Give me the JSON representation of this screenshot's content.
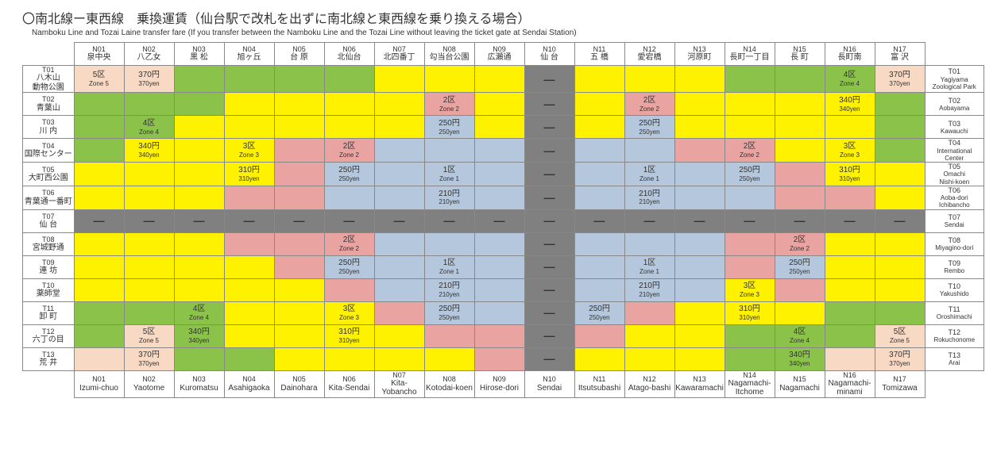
{
  "title_jp": "〇南北線ー東西線　乗換運賃（仙台駅で改札を出ずに南北線と東西線を乗り換える場合）",
  "subtitle_en": "Namboku Line and Tozai Laine transfer fare (If you transfer between the Namboku Line and the Tozai Line without leaving the ticket gate at Sendai Station)",
  "colors": {
    "yellow": "#fff200",
    "green": "#8bc34a",
    "pink": "#e9a3a0",
    "blue": "#b4c7dc",
    "peach": "#f7d9c4",
    "gray": "#808080",
    "white": "#ffffff"
  },
  "columns": [
    {
      "code": "N01",
      "jp": "泉中央",
      "en": "Izumi-chuo"
    },
    {
      "code": "N02",
      "jp": "八乙女",
      "en": "Yaotome"
    },
    {
      "code": "N03",
      "jp": "黒 松",
      "en": "Kuromatsu"
    },
    {
      "code": "N04",
      "jp": "旭ヶ丘",
      "en": "Asahigaoka"
    },
    {
      "code": "N05",
      "jp": "台 原",
      "en": "Dainohara"
    },
    {
      "code": "N06",
      "jp": "北仙台",
      "en": "Kita-Sendai"
    },
    {
      "code": "N07",
      "jp": "北四番丁",
      "en": "Kita-Yobancho"
    },
    {
      "code": "N08",
      "jp": "勾当台公園",
      "en": "Kotodai-koen"
    },
    {
      "code": "N09",
      "jp": "広瀬通",
      "en": "Hirose-dori"
    },
    {
      "code": "N10",
      "jp": "仙 台",
      "en": "Sendai"
    },
    {
      "code": "N11",
      "jp": "五 橋",
      "en": "Itsutsubashi"
    },
    {
      "code": "N12",
      "jp": "愛宕橋",
      "en": "Atago-bashi"
    },
    {
      "code": "N13",
      "jp": "河原町",
      "en": "Kawaramachi"
    },
    {
      "code": "N14",
      "jp": "長町一丁目",
      "en": "Nagamachi-Itchome"
    },
    {
      "code": "N15",
      "jp": "長 町",
      "en": "Nagamachi"
    },
    {
      "code": "N16",
      "jp": "長町南",
      "en": "Nagamachi-minami"
    },
    {
      "code": "N17",
      "jp": "富 沢",
      "en": "Tomizawa"
    }
  ],
  "rows": [
    {
      "code": "T01",
      "jp": "八木山\n動物公園",
      "en": "Yagiyama\nZoological Park"
    },
    {
      "code": "T02",
      "jp": "青葉山",
      "en": "Aobayama"
    },
    {
      "code": "T03",
      "jp": "川 内",
      "en": "Kawauchi"
    },
    {
      "code": "T04",
      "jp": "国際センター",
      "en": "International\nCenter"
    },
    {
      "code": "T05",
      "jp": "大町西公園",
      "en": "Omachi\nNishi-koen"
    },
    {
      "code": "T06",
      "jp": "青葉通一番町",
      "en": "Aoba-dori\nIchibancho"
    },
    {
      "code": "T07",
      "jp": "仙 台",
      "en": "Sendai"
    },
    {
      "code": "T08",
      "jp": "宮城野通",
      "en": "Miyagino-dori"
    },
    {
      "code": "T09",
      "jp": "連 坊",
      "en": "Rembo"
    },
    {
      "code": "T10",
      "jp": "薬師堂",
      "en": "Yakushido"
    },
    {
      "code": "T11",
      "jp": "卸 町",
      "en": "Oroshimachi"
    },
    {
      "code": "T12",
      "jp": "六丁の目",
      "en": "Rokuchonome"
    },
    {
      "code": "T13",
      "jp": "荒 井",
      "en": "Arai"
    }
  ],
  "cells": [
    [
      [
        "peach",
        "5区",
        "Zone 5"
      ],
      [
        "peach",
        "370円",
        "370yen"
      ],
      [
        "green",
        "",
        ""
      ],
      [
        "green",
        "",
        ""
      ],
      [
        "green",
        "",
        ""
      ],
      [
        "green",
        "",
        ""
      ],
      [
        "yellow",
        "",
        ""
      ],
      [
        "yellow",
        "",
        ""
      ],
      [
        "yellow",
        "",
        ""
      ],
      [
        "gray",
        "—",
        ""
      ],
      [
        "yellow",
        "",
        ""
      ],
      [
        "yellow",
        "",
        ""
      ],
      [
        "yellow",
        "",
        ""
      ],
      [
        "green",
        "",
        ""
      ],
      [
        "green",
        "",
        ""
      ],
      [
        "green",
        "4区",
        "Zone 4"
      ],
      [
        "peach",
        "370円",
        "370yen"
      ]
    ],
    [
      [
        "green",
        "",
        ""
      ],
      [
        "green",
        "",
        ""
      ],
      [
        "green",
        "",
        ""
      ],
      [
        "yellow",
        "",
        ""
      ],
      [
        "yellow",
        "",
        ""
      ],
      [
        "yellow",
        "",
        ""
      ],
      [
        "yellow",
        "",
        ""
      ],
      [
        "pink",
        "2区",
        "Zone 2"
      ],
      [
        "yellow",
        "",
        ""
      ],
      [
        "gray",
        "—",
        ""
      ],
      [
        "yellow",
        "",
        ""
      ],
      [
        "pink",
        "2区",
        "Zone 2"
      ],
      [
        "yellow",
        "",
        ""
      ],
      [
        "yellow",
        "",
        ""
      ],
      [
        "yellow",
        "",
        ""
      ],
      [
        "yellow",
        "340円",
        "340yen"
      ],
      [
        "green",
        "",
        ""
      ]
    ],
    [
      [
        "green",
        "",
        ""
      ],
      [
        "green",
        "4区",
        "Zone 4"
      ],
      [
        "yellow",
        "",
        ""
      ],
      [
        "yellow",
        "",
        ""
      ],
      [
        "yellow",
        "",
        ""
      ],
      [
        "yellow",
        "",
        ""
      ],
      [
        "yellow",
        "",
        ""
      ],
      [
        "blue",
        "250円",
        "250yen"
      ],
      [
        "yellow",
        "",
        ""
      ],
      [
        "gray",
        "—",
        ""
      ],
      [
        "yellow",
        "",
        ""
      ],
      [
        "blue",
        "250円",
        "250yen"
      ],
      [
        "yellow",
        "",
        ""
      ],
      [
        "yellow",
        "",
        ""
      ],
      [
        "yellow",
        "",
        ""
      ],
      [
        "yellow",
        "",
        ""
      ],
      [
        "green",
        "",
        ""
      ]
    ],
    [
      [
        "green",
        "",
        ""
      ],
      [
        "yellow",
        "340円",
        "340yen"
      ],
      [
        "yellow",
        "",
        ""
      ],
      [
        "yellow",
        "3区",
        "Zone 3"
      ],
      [
        "pink",
        "",
        ""
      ],
      [
        "pink",
        "2区",
        "Zone 2"
      ],
      [
        "blue",
        "",
        ""
      ],
      [
        "blue",
        "",
        ""
      ],
      [
        "blue",
        "",
        ""
      ],
      [
        "gray",
        "—",
        ""
      ],
      [
        "blue",
        "",
        ""
      ],
      [
        "blue",
        "",
        ""
      ],
      [
        "pink",
        "",
        ""
      ],
      [
        "pink",
        "2区",
        "Zone 2"
      ],
      [
        "yellow",
        "",
        ""
      ],
      [
        "yellow",
        "3区",
        "Zone 3"
      ],
      [
        "green",
        "",
        ""
      ]
    ],
    [
      [
        "yellow",
        "",
        ""
      ],
      [
        "yellow",
        "",
        ""
      ],
      [
        "yellow",
        "",
        ""
      ],
      [
        "yellow",
        "310円",
        "310yen"
      ],
      [
        "pink",
        "",
        ""
      ],
      [
        "blue",
        "250円",
        "250yen"
      ],
      [
        "blue",
        "",
        ""
      ],
      [
        "blue",
        "1区",
        "Zone 1"
      ],
      [
        "blue",
        "",
        ""
      ],
      [
        "gray",
        "—",
        ""
      ],
      [
        "blue",
        "",
        ""
      ],
      [
        "blue",
        "1区",
        "Zone 1"
      ],
      [
        "blue",
        "",
        ""
      ],
      [
        "blue",
        "250円",
        "250yen"
      ],
      [
        "pink",
        "",
        ""
      ],
      [
        "yellow",
        "310円",
        "310yen"
      ],
      [
        "yellow",
        "",
        ""
      ]
    ],
    [
      [
        "yellow",
        "",
        ""
      ],
      [
        "yellow",
        "",
        ""
      ],
      [
        "yellow",
        "",
        ""
      ],
      [
        "pink",
        "",
        ""
      ],
      [
        "pink",
        "",
        ""
      ],
      [
        "blue",
        "",
        ""
      ],
      [
        "blue",
        "",
        ""
      ],
      [
        "blue",
        "210円",
        "210yen"
      ],
      [
        "blue",
        "",
        ""
      ],
      [
        "gray",
        "—",
        ""
      ],
      [
        "blue",
        "",
        ""
      ],
      [
        "blue",
        "210円",
        "210yen"
      ],
      [
        "blue",
        "",
        ""
      ],
      [
        "blue",
        "",
        ""
      ],
      [
        "pink",
        "",
        ""
      ],
      [
        "pink",
        "",
        ""
      ],
      [
        "yellow",
        "",
        ""
      ]
    ],
    [
      [
        "gray",
        "—",
        ""
      ],
      [
        "gray",
        "—",
        ""
      ],
      [
        "gray",
        "—",
        ""
      ],
      [
        "gray",
        "—",
        ""
      ],
      [
        "gray",
        "—",
        ""
      ],
      [
        "gray",
        "—",
        ""
      ],
      [
        "gray",
        "—",
        ""
      ],
      [
        "gray",
        "—",
        ""
      ],
      [
        "gray",
        "—",
        ""
      ],
      [
        "gray",
        "—",
        ""
      ],
      [
        "gray",
        "—",
        ""
      ],
      [
        "gray",
        "—",
        ""
      ],
      [
        "gray",
        "—",
        ""
      ],
      [
        "gray",
        "—",
        ""
      ],
      [
        "gray",
        "—",
        ""
      ],
      [
        "gray",
        "—",
        ""
      ],
      [
        "gray",
        "—",
        ""
      ]
    ],
    [
      [
        "yellow",
        "",
        ""
      ],
      [
        "yellow",
        "",
        ""
      ],
      [
        "yellow",
        "",
        ""
      ],
      [
        "pink",
        "",
        ""
      ],
      [
        "pink",
        "",
        ""
      ],
      [
        "pink",
        "2区",
        "Zone 2"
      ],
      [
        "blue",
        "",
        ""
      ],
      [
        "blue",
        "",
        ""
      ],
      [
        "blue",
        "",
        ""
      ],
      [
        "gray",
        "—",
        ""
      ],
      [
        "blue",
        "",
        ""
      ],
      [
        "blue",
        "",
        ""
      ],
      [
        "blue",
        "",
        ""
      ],
      [
        "pink",
        "",
        ""
      ],
      [
        "pink",
        "2区",
        "Zone 2"
      ],
      [
        "yellow",
        "",
        ""
      ],
      [
        "yellow",
        "",
        ""
      ]
    ],
    [
      [
        "yellow",
        "",
        ""
      ],
      [
        "yellow",
        "",
        ""
      ],
      [
        "yellow",
        "",
        ""
      ],
      [
        "yellow",
        "",
        ""
      ],
      [
        "pink",
        "",
        ""
      ],
      [
        "blue",
        "250円",
        "250yen"
      ],
      [
        "blue",
        "",
        ""
      ],
      [
        "blue",
        "1区",
        "Zone 1"
      ],
      [
        "blue",
        "",
        ""
      ],
      [
        "gray",
        "—",
        ""
      ],
      [
        "blue",
        "",
        ""
      ],
      [
        "blue",
        "1区",
        "Zone 1"
      ],
      [
        "blue",
        "",
        ""
      ],
      [
        "pink",
        "",
        ""
      ],
      [
        "blue",
        "250円",
        "250yen"
      ],
      [
        "yellow",
        "",
        ""
      ],
      [
        "yellow",
        "",
        ""
      ]
    ],
    [
      [
        "yellow",
        "",
        ""
      ],
      [
        "yellow",
        "",
        ""
      ],
      [
        "yellow",
        "",
        ""
      ],
      [
        "yellow",
        "",
        ""
      ],
      [
        "yellow",
        "",
        ""
      ],
      [
        "pink",
        "",
        ""
      ],
      [
        "blue",
        "",
        ""
      ],
      [
        "blue",
        "210円",
        "210yen"
      ],
      [
        "blue",
        "",
        ""
      ],
      [
        "gray",
        "—",
        ""
      ],
      [
        "blue",
        "",
        ""
      ],
      [
        "blue",
        "210円",
        "210yen"
      ],
      [
        "blue",
        "",
        ""
      ],
      [
        "yellow",
        "3区",
        "Zone 3"
      ],
      [
        "pink",
        "",
        ""
      ],
      [
        "yellow",
        "",
        ""
      ],
      [
        "yellow",
        "",
        ""
      ]
    ],
    [
      [
        "green",
        "",
        ""
      ],
      [
        "green",
        "",
        ""
      ],
      [
        "green",
        "4区",
        "Zone 4"
      ],
      [
        "yellow",
        "",
        ""
      ],
      [
        "yellow",
        "",
        ""
      ],
      [
        "yellow",
        "3区",
        "Zone 3"
      ],
      [
        "pink",
        "",
        ""
      ],
      [
        "blue",
        "250円",
        "250yen"
      ],
      [
        "blue",
        "",
        ""
      ],
      [
        "gray",
        "—",
        ""
      ],
      [
        "blue",
        "250円",
        "250yen"
      ],
      [
        "pink",
        "",
        ""
      ],
      [
        "yellow",
        "",
        ""
      ],
      [
        "yellow",
        "310円",
        "310yen"
      ],
      [
        "yellow",
        "",
        ""
      ],
      [
        "green",
        "",
        ""
      ],
      [
        "green",
        "",
        ""
      ]
    ],
    [
      [
        "green",
        "",
        ""
      ],
      [
        "peach",
        "5区",
        "Zone 5"
      ],
      [
        "green",
        "340円",
        "340yen"
      ],
      [
        "yellow",
        "",
        ""
      ],
      [
        "yellow",
        "",
        ""
      ],
      [
        "yellow",
        "310円",
        "310yen"
      ],
      [
        "yellow",
        "",
        ""
      ],
      [
        "pink",
        "",
        ""
      ],
      [
        "pink",
        "",
        ""
      ],
      [
        "gray",
        "—",
        ""
      ],
      [
        "pink",
        "",
        ""
      ],
      [
        "yellow",
        "",
        ""
      ],
      [
        "yellow",
        "",
        ""
      ],
      [
        "green",
        "",
        ""
      ],
      [
        "green",
        "4区",
        "Zone 4"
      ],
      [
        "green",
        "",
        ""
      ],
      [
        "peach",
        "5区",
        "Zone 5"
      ]
    ],
    [
      [
        "peach",
        "",
        ""
      ],
      [
        "peach",
        "370円",
        "370yen"
      ],
      [
        "green",
        "",
        ""
      ],
      [
        "green",
        "",
        ""
      ],
      [
        "yellow",
        "",
        ""
      ],
      [
        "yellow",
        "",
        ""
      ],
      [
        "yellow",
        "",
        ""
      ],
      [
        "yellow",
        "",
        ""
      ],
      [
        "pink",
        "",
        ""
      ],
      [
        "gray",
        "—",
        ""
      ],
      [
        "yellow",
        "",
        ""
      ],
      [
        "yellow",
        "",
        ""
      ],
      [
        "yellow",
        "",
        ""
      ],
      [
        "green",
        "",
        ""
      ],
      [
        "green",
        "340円",
        "340yen"
      ],
      [
        "peach",
        "",
        ""
      ],
      [
        "peach",
        "370円",
        "370yen"
      ]
    ]
  ]
}
